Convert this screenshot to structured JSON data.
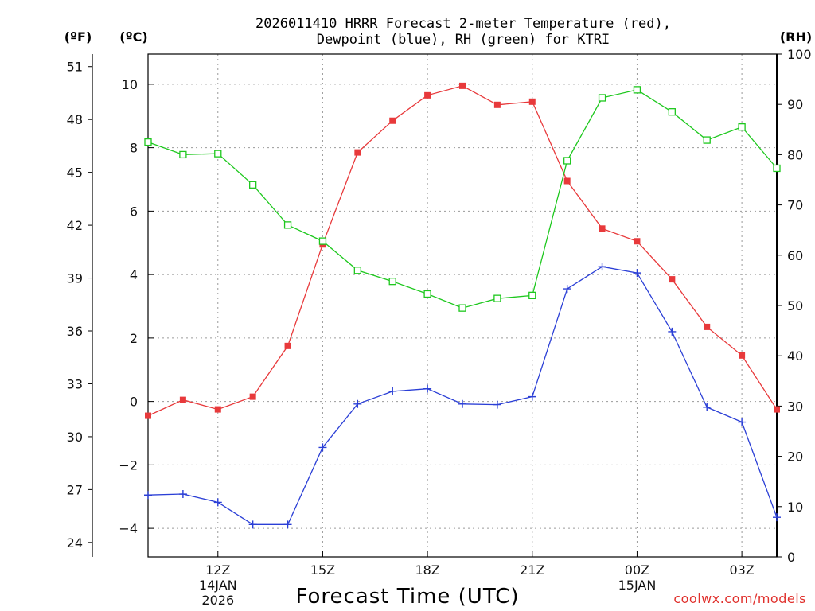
{
  "chart_data": {
    "type": "line",
    "title": "2026011410 HRRR Forecast 2-meter Temperature (red),",
    "title_line2": "Dewpoint (blue), RH (green) for KTRI",
    "xlabel": "Forecast Time (UTC)",
    "credit": "coolwx.com/models",
    "units": {
      "fahrenheit": "(ºF)",
      "celsius": "(ºC)",
      "rh": "(RH)"
    },
    "x_hours": [
      10,
      11,
      12,
      13,
      14,
      15,
      16,
      17,
      18,
      19,
      20,
      21,
      22,
      23,
      24,
      25,
      26,
      27,
      28
    ],
    "xlim": [
      10,
      28
    ],
    "x_ticks": [
      {
        "hour": 12,
        "label": "12Z",
        "date1": "14JAN",
        "date2": "2026"
      },
      {
        "hour": 15,
        "label": "15Z"
      },
      {
        "hour": 18,
        "label": "18Z"
      },
      {
        "hour": 21,
        "label": "21Z"
      },
      {
        "hour": 24,
        "label": "00Z",
        "date1": "15JAN"
      },
      {
        "hour": 27,
        "label": "03Z"
      }
    ],
    "celsius_axis": {
      "ylim": [
        -4.9,
        10.95
      ],
      "ticks": [
        "-4",
        "-2",
        "0",
        "2",
        "4",
        "6",
        "8",
        "10"
      ]
    },
    "fahrenheit_axis": {
      "ticks": [
        "24",
        "27",
        "30",
        "33",
        "36",
        "39",
        "42",
        "45",
        "48",
        "51"
      ]
    },
    "rh_axis": {
      "ylim": [
        0,
        100
      ],
      "ticks": [
        "0",
        "10",
        "20",
        "30",
        "40",
        "50",
        "60",
        "70",
        "80",
        "90",
        "100"
      ]
    },
    "series": [
      {
        "name": "Temperature",
        "units": "C",
        "color": "#e8393b",
        "marker": "filled-square",
        "values": [
          -0.45,
          0.05,
          -0.25,
          0.15,
          1.75,
          4.95,
          7.85,
          8.85,
          9.65,
          9.95,
          9.35,
          9.45,
          6.95,
          5.45,
          5.05,
          3.85,
          2.35,
          1.45,
          -0.25
        ]
      },
      {
        "name": "Dewpoint",
        "units": "C",
        "color": "#2b3fd6",
        "marker": "plus",
        "values": [
          -2.95,
          -2.92,
          -3.18,
          -3.88,
          -3.88,
          -1.45,
          -0.08,
          0.32,
          0.4,
          -0.08,
          -0.1,
          0.15,
          3.55,
          4.25,
          4.05,
          2.2,
          -0.18,
          -0.65,
          -3.65
        ]
      },
      {
        "name": "RH",
        "units": "%",
        "color": "#1ec81e",
        "marker": "open-square",
        "values": [
          82.5,
          80.0,
          80.2,
          74.0,
          66.0,
          62.8,
          57.0,
          54.8,
          52.3,
          49.5,
          51.4,
          52.0,
          78.8,
          91.3,
          92.9,
          88.5,
          82.9,
          85.5,
          77.3
        ]
      }
    ]
  }
}
